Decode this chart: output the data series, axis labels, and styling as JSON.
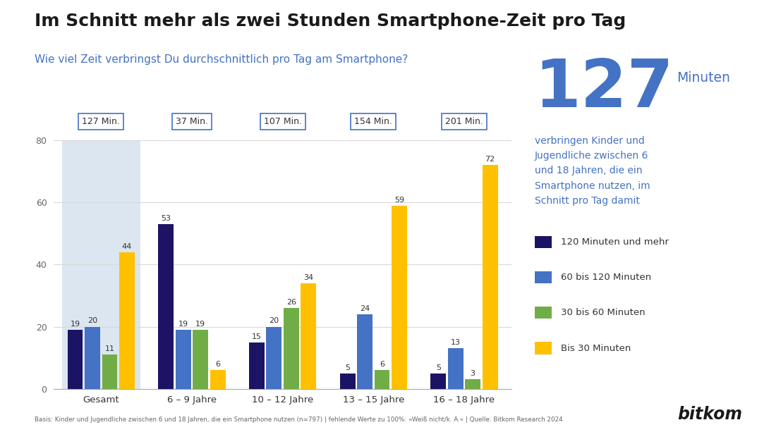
{
  "title": "Im Schnitt mehr als zwei Stunden Smartphone-Zeit pro Tag",
  "subtitle": "Wie viel Zeit verbringst Du durchschnittlich pro Tag am Smartphone?",
  "categories": [
    "Gesamt",
    "6 – 9 Jahre",
    "10 – 12 Jahre",
    "13 – 15 Jahre",
    "16 – 18 Jahre"
  ],
  "avg_labels": [
    "127 Min.",
    "37 Min.",
    "107 Min.",
    "154 Min.",
    "201 Min."
  ],
  "series": {
    "120 Minuten und mehr": [
      19,
      53,
      15,
      5,
      5
    ],
    "60 bis 120 Minuten": [
      20,
      19,
      20,
      24,
      13
    ],
    "30 bis 60 Minuten": [
      11,
      19,
      26,
      6,
      3
    ],
    "Bis 30 Minuten": [
      44,
      6,
      34,
      59,
      72
    ]
  },
  "colors": {
    "120 Minuten und mehr": "#1b1464",
    "60 bis 120 Minuten": "#4472c4",
    "30 bis 60 Minuten": "#70ad47",
    "Bis 30 Minuten": "#ffc000"
  },
  "bar_order": [
    "120 Minuten und mehr",
    "60 bis 120 Minuten",
    "30 bis 60 Minuten",
    "Bis 30 Minuten"
  ],
  "ylim": [
    0,
    80
  ],
  "yticks": [
    0,
    20,
    40,
    60,
    80
  ],
  "background_color": "#ffffff",
  "title_color": "#1a1a1a",
  "subtitle_color": "#4472c4",
  "accent_number": "127",
  "accent_label": "Minuten",
  "accent_text": "verbringen Kinder und\nJugendliche zwischen 6\nund 18 Jahren, die ein\nSmartphone nutzen, im\nSchnitt pro Tag damit",
  "accent_color": "#4472c4",
  "footnote": "Basis: Kinder und Jugendliche zwischen 6 und 18 Jahren, die ein Smartphone nutzen (n=797) | fehlende Werte zu 100%: »Weiß nicht/k. A.« | Quelle: Bitkom Research 2024",
  "gesamt_bg_color": "#dce6f1",
  "box_border_color": "#4472c4",
  "grid_color": "#d9d9d9",
  "bar_width": 0.17
}
